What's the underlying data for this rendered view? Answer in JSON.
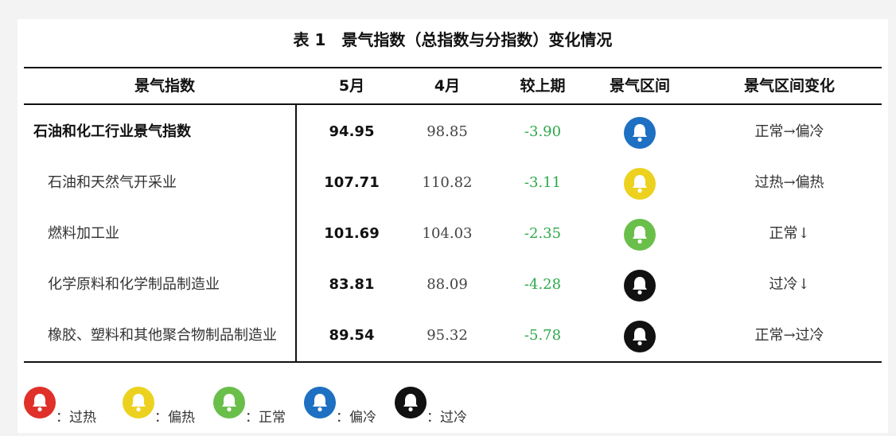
{
  "caption": "表 1　景气指数（总指数与分指数）变化情况",
  "columns": [
    "景气指数",
    "5月",
    "4月",
    "较上期",
    "景气区间",
    "景气区间变化"
  ],
  "rows": [
    {
      "name": "石油和化工行业景气指数",
      "may": "94.95",
      "apr": "98.85",
      "change": "-3.90",
      "zone_icon": "bell-blue",
      "zone_color": "#1d70c2",
      "trend": "正常→偏冷"
    },
    {
      "name": "石油和天然气开采业",
      "may": "107.71",
      "apr": "110.82",
      "change": "-3.11",
      "zone_icon": "bell-yellow",
      "zone_color": "#ecd21f",
      "trend": "过热→偏热"
    },
    {
      "name": "燃料加工业",
      "may": "101.69",
      "apr": "104.03",
      "change": "-2.35",
      "zone_icon": "bell-green",
      "zone_color": "#6abf4b",
      "trend": "正常↓"
    },
    {
      "name": "化学原料和化学制品制造业",
      "may": "83.81",
      "apr": "88.09",
      "change": "-4.28",
      "zone_icon": "bell-black",
      "zone_color": "#111111",
      "trend": "过冷↓"
    },
    {
      "name": "橡胶、塑料和其他聚合物制品制造业",
      "may": "89.54",
      "apr": "95.32",
      "change": "-5.78",
      "zone_icon": "bell-black",
      "zone_color": "#111111",
      "trend": "正常→过冷"
    }
  ],
  "legend": [
    {
      "label": "：过热",
      "icon": "bell-red",
      "color": "#e0302a"
    },
    {
      "label": "：偏热",
      "icon": "bell-yellow",
      "color": "#ecd21f"
    },
    {
      "label": "：正常",
      "icon": "bell-green",
      "color": "#6abf4b"
    },
    {
      "label": "：偏冷",
      "icon": "bell-blue",
      "color": "#1d70c2"
    },
    {
      "label": "：过冷",
      "icon": "bell-black",
      "color": "#111111"
    }
  ]
}
